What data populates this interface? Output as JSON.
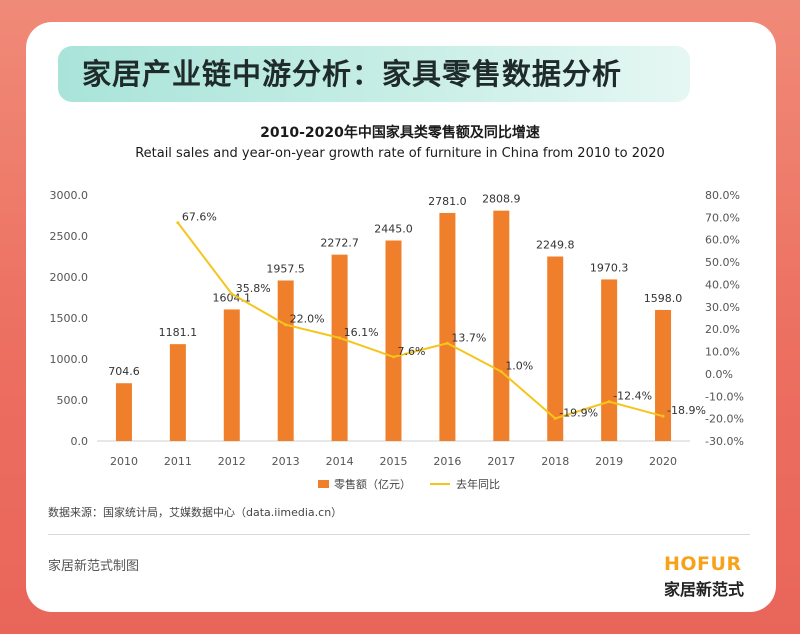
{
  "header": {
    "title": "家居产业链中游分析：家具零售数据分析"
  },
  "chart_data": {
    "type": "bar",
    "title": "2010-2020年中国家具类零售额及同比增速",
    "subtitle": "Retail sales and year-on-year growth rate of furniture in China from 2010 to 2020",
    "categories": [
      "2010",
      "2011",
      "2012",
      "2013",
      "2014",
      "2015",
      "2016",
      "2017",
      "2018",
      "2019",
      "2020"
    ],
    "series": [
      {
        "name": "零售额（亿元）",
        "type": "bar",
        "axis": "left",
        "color": "#ef7f2b",
        "values": [
          704.6,
          1181.1,
          1604.1,
          1957.5,
          2272.7,
          2445.0,
          2781.0,
          2808.9,
          2249.8,
          1970.3,
          1598.0
        ],
        "labels": [
          "704.6",
          "1181.1",
          "1604.1",
          "1957.5",
          "2272.7",
          "2445.0",
          "2781.0",
          "2808.9",
          "2249.8",
          "1970.3",
          "1598.0"
        ]
      },
      {
        "name": "去年同比",
        "type": "line",
        "axis": "right",
        "color": "#f5c51e",
        "values": [
          null,
          67.6,
          35.8,
          22.0,
          16.1,
          7.6,
          13.7,
          1.0,
          -19.9,
          -12.4,
          -18.9
        ],
        "labels": [
          "",
          "67.6%",
          "35.8%",
          "22.0%",
          "16.1%",
          "7.6%",
          "13.7%",
          "1.0%",
          "-19.9%",
          "-12.4%",
          "-18.9%"
        ]
      }
    ],
    "y_left": {
      "min": 0,
      "max": 3000,
      "ticks": [
        0,
        500,
        1000,
        1500,
        2000,
        2500,
        3000
      ],
      "tick_labels": [
        "0.0",
        "500.0",
        "1000.0",
        "1500.0",
        "2000.0",
        "2500.0",
        "3000.0"
      ]
    },
    "y_right": {
      "min": -30,
      "max": 80,
      "ticks": [
        -30,
        -20,
        -10,
        0,
        10,
        20,
        30,
        40,
        50,
        60,
        70,
        80
      ],
      "tick_labels": [
        "-30.0%",
        "-20.0%",
        "-10.0%",
        "0.0%",
        "10.0%",
        "20.0%",
        "30.0%",
        "40.0%",
        "50.0%",
        "60.0%",
        "70.0%",
        "80.0%"
      ]
    },
    "grid": false,
    "legend_position": "bottom"
  },
  "footer": {
    "source": "数据来源：国家统计局，艾媒数据中心（data.iimedia.cn）",
    "credit": "家居新范式制图",
    "logo_en": "HOFUR",
    "logo_cn": "家居新范式"
  }
}
